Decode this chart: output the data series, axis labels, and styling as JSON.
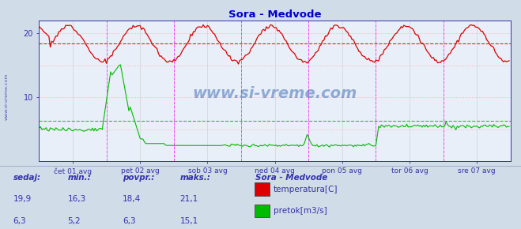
{
  "title": "Sora - Medvode",
  "title_color": "#0000cc",
  "bg_color": "#d0dce8",
  "plot_bg_color": "#e8eff8",
  "fig_width": 6.59,
  "fig_height": 2.9,
  "dpi": 100,
  "xlim": [
    0,
    336
  ],
  "ylim": [
    0,
    22
  ],
  "yticks": [
    10,
    20
  ],
  "grid_h_color": "#ffaaaa",
  "grid_v_color": "#cccccc",
  "temp_color": "#dd0000",
  "flow_color": "#00bb00",
  "temp_avg_line": 18.4,
  "flow_avg_line": 6.3,
  "vline_color": "#ff44ff",
  "vline_positions": [
    48,
    96,
    144,
    192,
    240,
    288
  ],
  "xtick_labels": [
    "čet 01 avg",
    "pet 02 avg",
    "sob 03 avg",
    "ned 04 avg",
    "pon 05 avg",
    "tor 06 avg",
    "sre 07 avg"
  ],
  "xtick_positions": [
    24,
    72,
    120,
    168,
    216,
    264,
    312
  ],
  "axis_color": "#3333aa",
  "tick_color": "#3333aa",
  "watermark": "www.si-vreme.com",
  "watermark_color": "#2255aa",
  "bottom_bg": "#d0dce8",
  "legend_title": "Sora - Medvode",
  "legend_entries": [
    "temperatura[C]",
    "pretok[m3/s]"
  ],
  "legend_colors": [
    "#dd0000",
    "#00bb00"
  ],
  "stats_labels": [
    "sedaj:",
    "min.:",
    "povpr.:",
    "maks.:"
  ],
  "stats_temp": [
    "19,9",
    "16,3",
    "18,4",
    "21,1"
  ],
  "stats_flow": [
    "6,3",
    "5,2",
    "6,3",
    "15,1"
  ],
  "stats_color": "#3333aa",
  "left_label": "www.si-vreme.com"
}
